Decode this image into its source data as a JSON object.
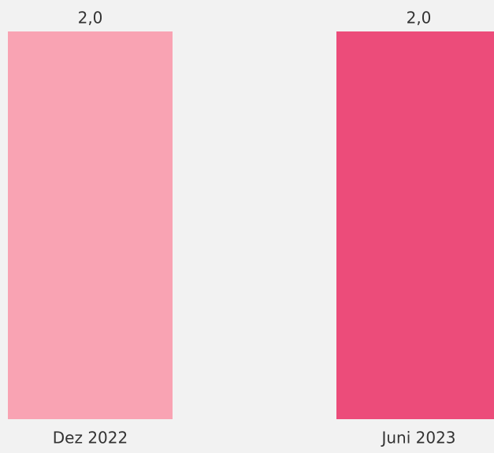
{
  "chart_data": {
    "type": "bar",
    "categories": [
      "Dez 2022",
      "Juni 2023"
    ],
    "values": [
      2.0,
      2.0
    ],
    "value_labels": [
      "2,0",
      "2,0"
    ],
    "colors": [
      "#f9a3b3",
      "#ec4c7a"
    ]
  }
}
